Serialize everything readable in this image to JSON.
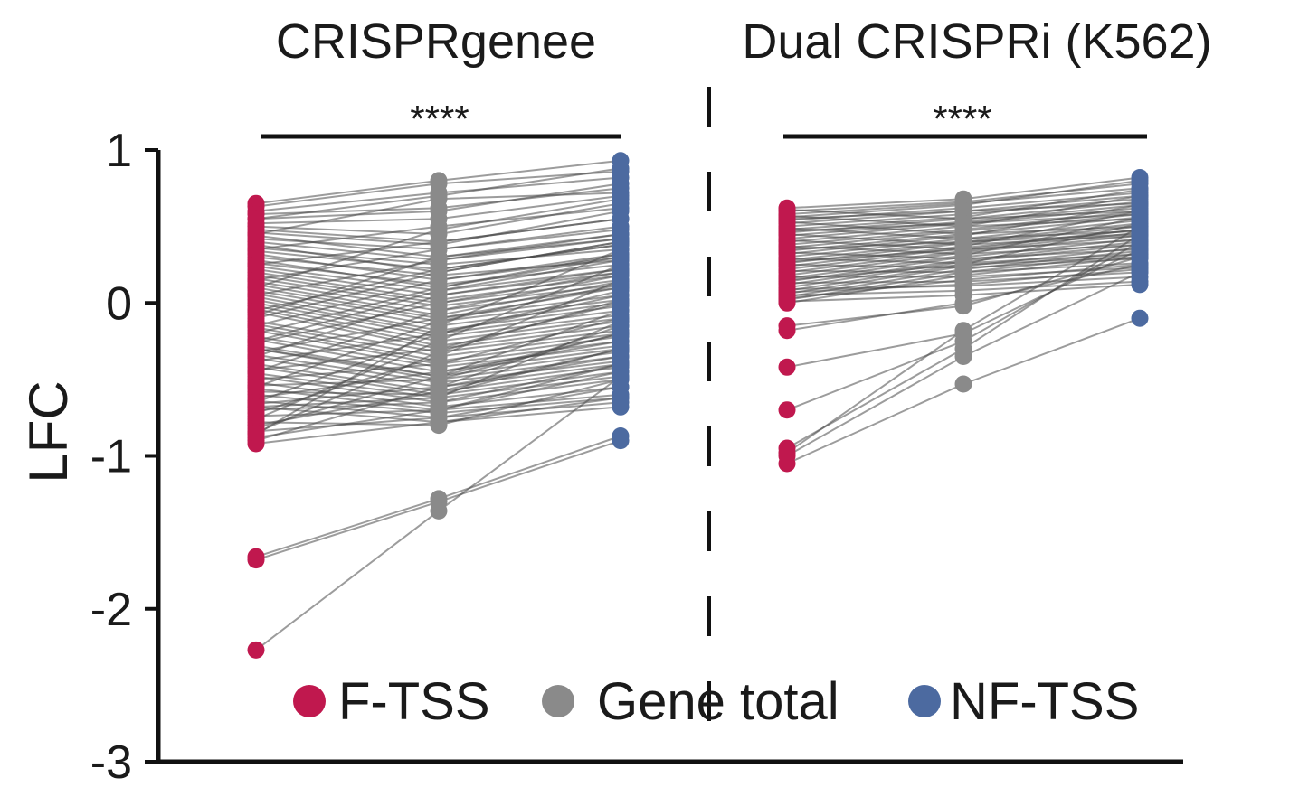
{
  "chart_data": {
    "type": "scatter",
    "subtype": "paired-dot-plot",
    "ylabel": "LFC",
    "ylim": [
      -3,
      1
    ],
    "y_ticks": [
      "1",
      "0",
      "-1",
      "-2",
      "-3"
    ],
    "y_tick_values": [
      1,
      0,
      -1,
      -2,
      -3
    ],
    "grid": false,
    "groups": [
      "F-TSS",
      "Gene total",
      "NF-TSS"
    ],
    "legend": {
      "placement": "bottom-center",
      "entries": [
        {
          "label": "F-TSS",
          "color": "#c0184e"
        },
        {
          "label": "Gene total",
          "color": "#8a8a8a"
        },
        {
          "label": "NF-TSS",
          "color": "#4c6aa0"
        }
      ]
    },
    "colors": {
      "f_tss": "#c0184e",
      "gene_total": "#8a8a8a",
      "nf_tss": "#4c6aa0",
      "line": "#4a4a4a"
    },
    "panels": [
      {
        "title": "CRISPRgenee",
        "significance": "****",
        "pairs": [
          [
            0.65,
            0.8,
            0.93
          ],
          [
            0.63,
            0.78,
            0.86
          ],
          [
            0.6,
            0.72,
            0.82
          ],
          [
            0.58,
            0.62,
            0.75
          ],
          [
            0.55,
            0.6,
            0.78
          ],
          [
            0.52,
            0.55,
            0.7
          ],
          [
            0.5,
            0.45,
            0.65
          ],
          [
            0.48,
            0.4,
            0.55
          ],
          [
            0.46,
            0.38,
            0.6
          ],
          [
            0.44,
            0.3,
            0.42
          ],
          [
            0.42,
            0.35,
            0.5
          ],
          [
            0.4,
            0.28,
            0.45
          ],
          [
            0.38,
            0.2,
            0.4
          ],
          [
            0.36,
            0.25,
            0.35
          ],
          [
            0.34,
            0.22,
            0.38
          ],
          [
            0.32,
            0.15,
            0.3
          ],
          [
            0.3,
            0.18,
            0.28
          ],
          [
            0.28,
            0.1,
            0.32
          ],
          [
            0.26,
            0.12,
            0.25
          ],
          [
            0.24,
            0.08,
            0.22
          ],
          [
            0.22,
            0.05,
            0.2
          ],
          [
            0.2,
            0.02,
            0.18
          ],
          [
            0.18,
            0.0,
            0.15
          ],
          [
            0.16,
            -0.02,
            0.12
          ],
          [
            0.14,
            -0.05,
            0.1
          ],
          [
            0.12,
            -0.08,
            0.14
          ],
          [
            0.1,
            -0.1,
            0.05
          ],
          [
            0.08,
            -0.12,
            0.02
          ],
          [
            0.06,
            -0.15,
            0.0
          ],
          [
            0.04,
            -0.18,
            -0.02
          ],
          [
            0.02,
            -0.2,
            -0.05
          ],
          [
            0.0,
            -0.22,
            -0.08
          ],
          [
            -0.02,
            -0.25,
            -0.1
          ],
          [
            -0.04,
            -0.28,
            -0.12
          ],
          [
            -0.06,
            -0.3,
            -0.15
          ],
          [
            -0.08,
            0.3,
            0.45
          ],
          [
            -0.1,
            0.2,
            0.4
          ],
          [
            -0.12,
            -0.32,
            -0.18
          ],
          [
            -0.14,
            -0.35,
            -0.2
          ],
          [
            -0.16,
            -0.38,
            -0.22
          ],
          [
            -0.18,
            -0.4,
            -0.25
          ],
          [
            -0.2,
            0.1,
            0.3
          ],
          [
            -0.22,
            -0.42,
            -0.28
          ],
          [
            -0.24,
            -0.45,
            -0.3
          ],
          [
            -0.26,
            0.0,
            0.2
          ],
          [
            -0.28,
            -0.48,
            -0.32
          ],
          [
            -0.3,
            -0.5,
            -0.35
          ],
          [
            -0.32,
            -0.1,
            0.1
          ],
          [
            -0.34,
            -0.52,
            -0.38
          ],
          [
            -0.36,
            -0.55,
            -0.4
          ],
          [
            -0.38,
            -0.2,
            0.05
          ],
          [
            -0.4,
            -0.58,
            -0.42
          ],
          [
            -0.42,
            -0.6,
            -0.45
          ],
          [
            -0.44,
            -0.3,
            0.0
          ],
          [
            -0.46,
            -0.62,
            -0.48
          ],
          [
            -0.48,
            -0.65,
            -0.5
          ],
          [
            -0.5,
            -0.4,
            -0.1
          ],
          [
            -0.52,
            -0.68,
            -0.55
          ],
          [
            -0.54,
            -0.5,
            -0.2
          ],
          [
            -0.56,
            -0.7,
            -0.6
          ],
          [
            -0.58,
            -0.6,
            -0.3
          ],
          [
            -0.6,
            -0.72,
            -0.62
          ],
          [
            -0.62,
            -0.45,
            -0.25
          ],
          [
            -0.64,
            -0.75,
            -0.65
          ],
          [
            -0.66,
            -0.55,
            -0.35
          ],
          [
            -0.68,
            -0.78,
            -0.68
          ],
          [
            -0.7,
            -0.65,
            -0.4
          ],
          [
            -0.72,
            -0.35,
            0.15
          ],
          [
            -0.74,
            -0.7,
            -0.45
          ],
          [
            -0.76,
            -0.25,
            0.25
          ],
          [
            -0.78,
            -0.8,
            -0.5
          ],
          [
            -0.8,
            -0.58,
            -0.3
          ],
          [
            -0.82,
            -0.48,
            -0.2
          ],
          [
            -0.84,
            -0.75,
            -0.55
          ],
          [
            -0.86,
            -0.15,
            0.35
          ],
          [
            -0.88,
            -0.7,
            -0.4
          ],
          [
            -0.9,
            -0.55,
            -0.15
          ],
          [
            -0.92,
            -0.78,
            -0.62
          ],
          [
            0.35,
            0.5,
            0.62
          ],
          [
            0.25,
            0.4,
            0.55
          ],
          [
            0.15,
            0.35,
            0.48
          ],
          [
            0.05,
            0.28,
            0.42
          ],
          [
            -0.05,
            0.22,
            0.38
          ],
          [
            -0.15,
            0.15,
            0.32
          ],
          [
            -0.25,
            0.08,
            0.28
          ],
          [
            -0.35,
            0.05,
            0.22
          ],
          [
            -0.45,
            -0.05,
            0.18
          ],
          [
            -0.55,
            -0.12,
            0.12
          ],
          [
            -0.65,
            -0.2,
            0.08
          ],
          [
            -0.85,
            -0.32,
            0.02
          ],
          [
            0.45,
            0.68,
            0.72
          ],
          [
            0.55,
            0.7,
            0.88
          ],
          [
            -0.68,
            -0.62,
            -0.12
          ],
          [
            -0.3,
            -0.48,
            -0.05
          ],
          [
            0.1,
            0.48,
            0.68
          ],
          [
            -1.66,
            -1.28,
            -0.87
          ],
          [
            -1.68,
            -1.3,
            -0.9
          ],
          [
            -2.27,
            -1.36,
            -0.48
          ]
        ]
      },
      {
        "title": "Dual CRISPRi (K562)",
        "significance": "****",
        "pairs": [
          [
            0.62,
            0.68,
            0.82
          ],
          [
            0.6,
            0.66,
            0.78
          ],
          [
            0.58,
            0.65,
            0.75
          ],
          [
            0.56,
            0.64,
            0.8
          ],
          [
            0.54,
            0.62,
            0.72
          ],
          [
            0.52,
            0.6,
            0.7
          ],
          [
            0.5,
            0.58,
            0.68
          ],
          [
            0.48,
            0.56,
            0.74
          ],
          [
            0.46,
            0.55,
            0.66
          ],
          [
            0.44,
            0.53,
            0.64
          ],
          [
            0.42,
            0.52,
            0.62
          ],
          [
            0.4,
            0.5,
            0.7
          ],
          [
            0.38,
            0.48,
            0.6
          ],
          [
            0.36,
            0.47,
            0.58
          ],
          [
            0.34,
            0.45,
            0.56
          ],
          [
            0.32,
            0.44,
            0.64
          ],
          [
            0.3,
            0.42,
            0.54
          ],
          [
            0.28,
            0.4,
            0.52
          ],
          [
            0.26,
            0.39,
            0.5
          ],
          [
            0.24,
            0.37,
            0.6
          ],
          [
            0.22,
            0.36,
            0.48
          ],
          [
            0.2,
            0.34,
            0.46
          ],
          [
            0.18,
            0.33,
            0.44
          ],
          [
            0.16,
            0.31,
            0.56
          ],
          [
            0.14,
            0.3,
            0.42
          ],
          [
            0.12,
            0.28,
            0.4
          ],
          [
            0.1,
            0.27,
            0.38
          ],
          [
            0.08,
            0.25,
            0.52
          ],
          [
            0.06,
            0.24,
            0.36
          ],
          [
            0.04,
            0.22,
            0.34
          ],
          [
            0.02,
            0.2,
            0.32
          ],
          [
            0.0,
            0.18,
            0.3
          ],
          [
            0.61,
            0.55,
            0.6
          ],
          [
            0.57,
            0.5,
            0.55
          ],
          [
            0.53,
            0.45,
            0.5
          ],
          [
            0.49,
            0.42,
            0.47
          ],
          [
            0.45,
            0.38,
            0.44
          ],
          [
            0.41,
            0.35,
            0.41
          ],
          [
            0.37,
            0.32,
            0.38
          ],
          [
            0.33,
            0.29,
            0.35
          ],
          [
            0.29,
            0.26,
            0.32
          ],
          [
            0.25,
            0.23,
            0.29
          ],
          [
            0.21,
            0.2,
            0.26
          ],
          [
            0.17,
            0.17,
            0.23
          ],
          [
            0.13,
            0.14,
            0.2
          ],
          [
            0.09,
            0.11,
            0.17
          ],
          [
            0.05,
            0.08,
            0.14
          ],
          [
            0.01,
            0.05,
            0.12
          ],
          [
            0.55,
            0.6,
            0.65
          ],
          [
            0.35,
            0.4,
            0.45
          ],
          [
            0.15,
            0.25,
            0.3
          ],
          [
            0.03,
            0.15,
            0.25
          ],
          [
            0.47,
            0.52,
            0.58
          ],
          [
            0.27,
            0.35,
            0.48
          ],
          [
            0.07,
            0.12,
            0.22
          ],
          [
            -0.15,
            -0.02,
            0.3
          ],
          [
            -0.18,
            0.0,
            0.25
          ],
          [
            -0.42,
            -0.2,
            0.35
          ],
          [
            -0.7,
            -0.25,
            0.4
          ],
          [
            -0.95,
            -0.3,
            0.45
          ],
          [
            -1.0,
            -0.35,
            0.2
          ],
          [
            -1.05,
            -0.53,
            -0.1
          ],
          [
            -0.98,
            -0.18,
            0.5
          ]
        ]
      }
    ]
  }
}
